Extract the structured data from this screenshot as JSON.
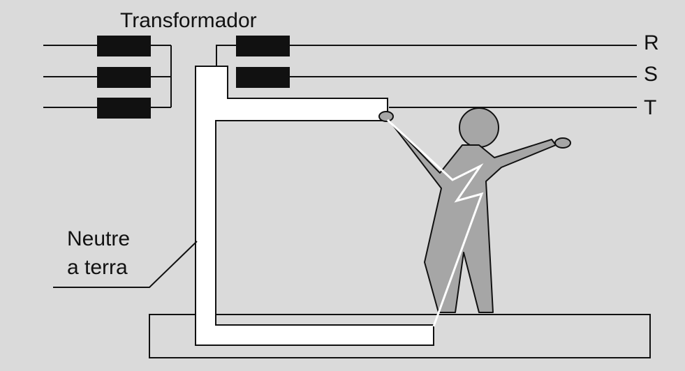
{
  "labels": {
    "transformer": "Transformador",
    "phase_r": "R",
    "phase_s": "S",
    "phase_t": "T",
    "neutral_line1": "Neutre",
    "neutral_line2": "a terra"
  },
  "colors": {
    "background": "#dadada",
    "coil": "#111111",
    "wire": "#111111",
    "figure": "#a6a6a6",
    "conductor": "#ffffff",
    "shock": "#ffffff"
  }
}
